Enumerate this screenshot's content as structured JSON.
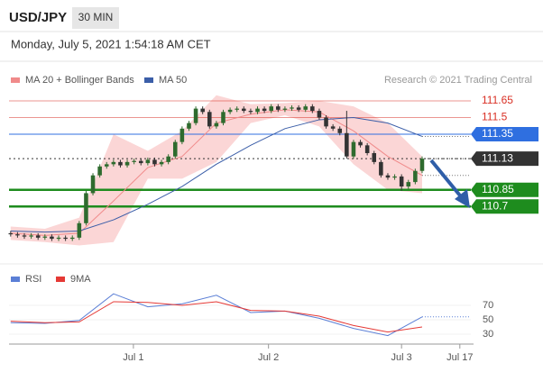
{
  "header": {
    "symbol": "USD/JPY",
    "interval": "30 MIN",
    "datetime": "Monday, July 5, 2021 1:54:18 AM CET"
  },
  "chart_data": [
    {
      "type": "candlestick",
      "credit": "Research © 2021 Trading Central",
      "up_color": "#2e6b2e",
      "down_color": "#333333",
      "xlim": [
        -0.5,
        67.5
      ],
      "ylim": [
        110.35,
        111.75
      ],
      "ohlc": [
        [
          110.46,
          110.48,
          110.43,
          110.45
        ],
        [
          110.45,
          110.47,
          110.42,
          110.44
        ],
        [
          110.44,
          110.46,
          110.41,
          110.43
        ],
        [
          110.43,
          110.46,
          110.41,
          110.44
        ],
        [
          110.44,
          110.46,
          110.4,
          110.42
        ],
        [
          110.42,
          110.45,
          110.4,
          110.43
        ],
        [
          110.43,
          110.45,
          110.39,
          110.41
        ],
        [
          110.41,
          110.44,
          110.39,
          110.42
        ],
        [
          110.42,
          110.44,
          110.39,
          110.41
        ],
        [
          110.41,
          110.44,
          110.39,
          110.42
        ],
        [
          110.42,
          110.57,
          110.4,
          110.55
        ],
        [
          110.55,
          110.84,
          110.53,
          110.82
        ],
        [
          110.82,
          111.0,
          110.8,
          110.98
        ],
        [
          110.98,
          111.08,
          110.96,
          111.06
        ],
        [
          111.06,
          111.1,
          111.04,
          111.08
        ],
        [
          111.08,
          111.12,
          111.06,
          111.1
        ],
        [
          111.1,
          111.12,
          111.05,
          111.07
        ],
        [
          111.07,
          111.12,
          111.05,
          111.1
        ],
        [
          111.1,
          111.13,
          111.08,
          111.11
        ],
        [
          111.11,
          111.13,
          111.07,
          111.09
        ],
        [
          111.09,
          111.14,
          111.07,
          111.12
        ],
        [
          111.12,
          111.14,
          111.06,
          111.08
        ],
        [
          111.08,
          111.12,
          111.06,
          111.1
        ],
        [
          111.1,
          111.17,
          111.08,
          111.15
        ],
        [
          111.15,
          111.3,
          111.13,
          111.28
        ],
        [
          111.28,
          111.42,
          111.26,
          111.4
        ],
        [
          111.4,
          111.47,
          111.38,
          111.45
        ],
        [
          111.45,
          111.6,
          111.43,
          111.58
        ],
        [
          111.58,
          111.6,
          111.53,
          111.55
        ],
        [
          111.55,
          111.57,
          111.4,
          111.42
        ],
        [
          111.42,
          111.47,
          111.4,
          111.45
        ],
        [
          111.45,
          111.57,
          111.43,
          111.55
        ],
        [
          111.55,
          111.59,
          111.53,
          111.57
        ],
        [
          111.57,
          111.6,
          111.55,
          111.58
        ],
        [
          111.58,
          111.6,
          111.54,
          111.56
        ],
        [
          111.56,
          111.58,
          111.53,
          111.55
        ],
        [
          111.55,
          111.6,
          111.53,
          111.58
        ],
        [
          111.58,
          111.6,
          111.54,
          111.56
        ],
        [
          111.56,
          111.62,
          111.54,
          111.6
        ],
        [
          111.6,
          111.62,
          111.55,
          111.57
        ],
        [
          111.57,
          111.6,
          111.55,
          111.58
        ],
        [
          111.58,
          111.61,
          111.56,
          111.59
        ],
        [
          111.59,
          111.61,
          111.55,
          111.57
        ],
        [
          111.57,
          111.62,
          111.55,
          111.6
        ],
        [
          111.6,
          111.62,
          111.54,
          111.56
        ],
        [
          111.56,
          111.58,
          111.48,
          111.5
        ],
        [
          111.5,
          111.52,
          111.4,
          111.42
        ],
        [
          111.42,
          111.44,
          111.38,
          111.4
        ],
        [
          111.4,
          111.42,
          111.34,
          111.36
        ],
        [
          111.36,
          111.56,
          111.13,
          111.15
        ],
        [
          111.15,
          111.3,
          111.13,
          111.28
        ],
        [
          111.28,
          111.3,
          111.23,
          111.25
        ],
        [
          111.25,
          111.27,
          111.16,
          111.18
        ],
        [
          111.18,
          111.2,
          111.08,
          111.1
        ],
        [
          111.1,
          111.12,
          110.96,
          110.98
        ],
        [
          110.98,
          111.0,
          110.94,
          110.96
        ],
        [
          110.96,
          110.99,
          110.94,
          110.97
        ],
        [
          110.97,
          110.99,
          110.84,
          110.88
        ],
        [
          110.88,
          110.94,
          110.86,
          110.92
        ],
        [
          110.92,
          111.04,
          110.9,
          111.02
        ],
        [
          111.02,
          111.15,
          111.0,
          111.13
        ]
      ],
      "bands": {
        "color": "#fbd6d6",
        "x": [
          0,
          5,
          10,
          15,
          20,
          25,
          30,
          35,
          40,
          45,
          50,
          55,
          60
        ],
        "upper": [
          110.52,
          110.5,
          110.6,
          111.35,
          111.2,
          111.38,
          111.7,
          111.62,
          111.63,
          111.65,
          111.6,
          111.45,
          111.15
        ],
        "lower": [
          110.4,
          110.38,
          110.35,
          110.38,
          110.95,
          110.95,
          111.1,
          111.45,
          111.52,
          111.42,
          111.08,
          110.85,
          110.82
        ]
      },
      "series": [
        {
          "name": "MA 20 + Bollinger Bands",
          "color": "#f08a8a",
          "x": [
            0,
            5,
            10,
            15,
            20,
            25,
            30,
            35,
            40,
            45,
            50,
            55,
            60
          ],
          "values": [
            110.46,
            110.44,
            110.46,
            110.75,
            111.05,
            111.15,
            111.45,
            111.53,
            111.57,
            111.55,
            111.38,
            111.15,
            110.98
          ]
        },
        {
          "name": "MA 50",
          "color": "#3b5ea8",
          "x": [
            0,
            5,
            10,
            15,
            20,
            25,
            30,
            35,
            40,
            45,
            50,
            55,
            60
          ],
          "values": [
            110.48,
            110.47,
            110.48,
            110.58,
            110.72,
            110.88,
            111.08,
            111.25,
            111.4,
            111.48,
            111.5,
            111.45,
            111.33
          ]
        }
      ],
      "levels": [
        {
          "value": 111.65,
          "color": "#d93025",
          "line": "solid",
          "label_style": "text"
        },
        {
          "value": 111.5,
          "color": "#d93025",
          "line": "solid",
          "label_style": "text"
        },
        {
          "value": 111.35,
          "color": "#2f6fe0",
          "line": "solid",
          "label_style": "box"
        },
        {
          "value": 111.13,
          "color": "#333333",
          "line": "dotted",
          "label_style": "box"
        },
        {
          "value": 110.85,
          "color": "#1e8c1e",
          "line": "thick",
          "label_style": "box"
        },
        {
          "value": 110.7,
          "color": "#1e8c1e",
          "line": "thick",
          "label_style": "box"
        }
      ]
    },
    {
      "type": "line",
      "xlim": [
        -0.5,
        67.5
      ],
      "ylim": [
        18,
        110
      ],
      "yticks": [
        70,
        50,
        30
      ],
      "xticks": [
        {
          "value": 17.9,
          "label": "Jul 1"
        },
        {
          "value": 37.6,
          "label": "Jul 2"
        },
        {
          "value": 57,
          "label": "Jul 3"
        },
        {
          "value": 65.5,
          "label": "Jul 17"
        }
      ],
      "series": [
        {
          "name": "RSI",
          "color": "#5b7fd6",
          "x": [
            0,
            5,
            10,
            15,
            20,
            25,
            30,
            35,
            40,
            45,
            50,
            55,
            60
          ],
          "values": [
            46,
            45,
            49,
            86,
            68,
            72,
            84,
            60,
            62,
            52,
            38,
            28,
            54
          ]
        },
        {
          "name": "9MA",
          "color": "#e53935",
          "x": [
            0,
            5,
            10,
            15,
            20,
            25,
            30,
            35,
            40,
            45,
            50,
            55,
            60
          ],
          "values": [
            48,
            46,
            47,
            75,
            74,
            70,
            75,
            63,
            62,
            55,
            42,
            33,
            40
          ]
        }
      ]
    }
  ]
}
